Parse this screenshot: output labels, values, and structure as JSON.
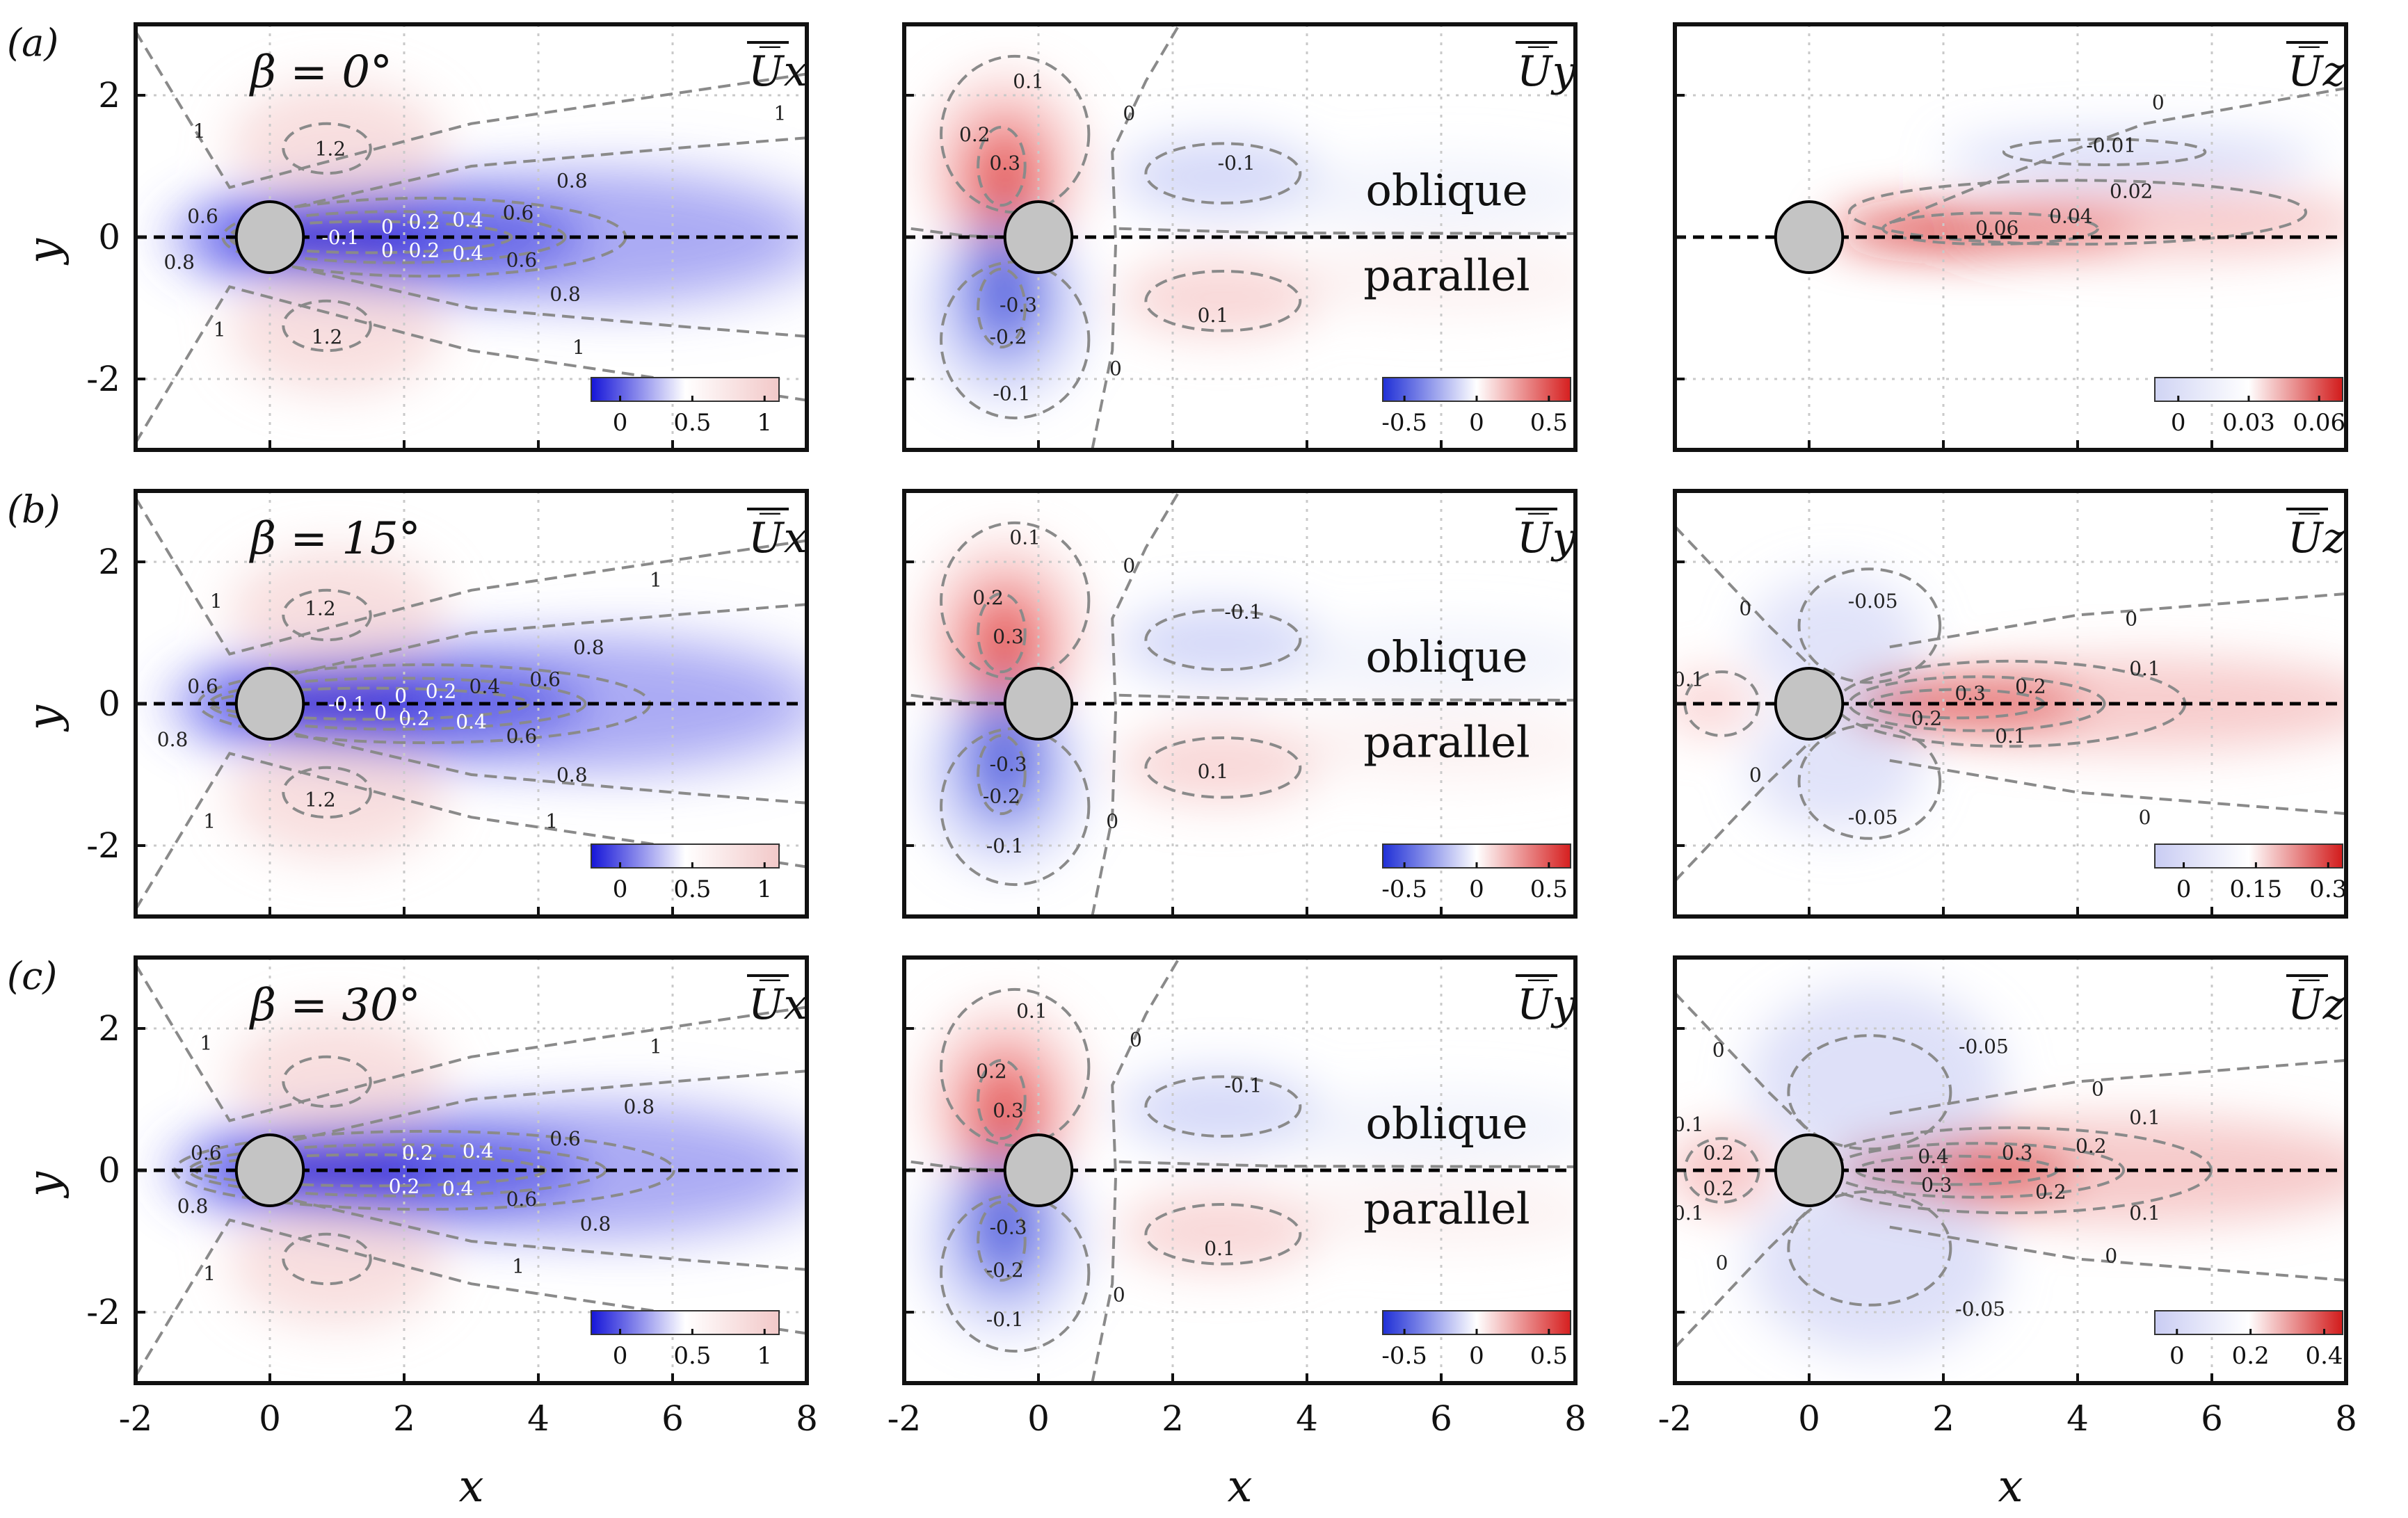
{
  "chart_data": {
    "type": "heatmap",
    "xlabel": "x",
    "ylabel": "y",
    "xlim": [
      -2,
      8
    ],
    "ylim": [
      -3,
      3
    ],
    "xticks": [
      "-2",
      "0",
      "2",
      "4",
      "6",
      "8"
    ],
    "yticks": [
      "2",
      "0",
      "-2"
    ],
    "region_labels": [
      "oblique",
      "parallel"
    ],
    "rows": [
      {
        "label": "(a)",
        "beta": "β = 0°",
        "panels": [
          {
            "field": "Ux",
            "title": "U̅x",
            "colorbar": {
              "min": -0.2,
              "max": 1.1,
              "ticks": [
                "0",
                "0.5",
                "1"
              ],
              "colors": [
                "#1515d8",
                "#ffffff",
                "#f2c8c8"
              ]
            },
            "contours": [
              {
                "v": "1",
                "x": 7.6,
                "y": 1.75
              },
              {
                "v": "1.2",
                "x": 0.9,
                "y": 1.25
              },
              {
                "v": "0.8",
                "x": 4.5,
                "y": 0.8
              },
              {
                "v": "0.6",
                "x": -1.0,
                "y": 0.3
              },
              {
                "v": "0.6",
                "x": 3.7,
                "y": 0.35
              },
              {
                "v": "0.4",
                "x": 2.95,
                "y": 0.25
              },
              {
                "v": "0.2",
                "x": 2.3,
                "y": 0.22
              },
              {
                "v": "0",
                "x": 1.75,
                "y": 0.15
              },
              {
                "v": "-0.1",
                "x": 1.05,
                "y": 0.0
              },
              {
                "v": "0",
                "x": 1.75,
                "y": -0.18
              },
              {
                "v": "0.2",
                "x": 2.3,
                "y": -0.18
              },
              {
                "v": "0.4",
                "x": 2.95,
                "y": -0.22
              },
              {
                "v": "0.6",
                "x": 3.75,
                "y": -0.32
              },
              {
                "v": "0.8",
                "x": -1.35,
                "y": -0.35
              },
              {
                "v": "0.8",
                "x": 4.4,
                "y": -0.8
              },
              {
                "v": "1.2",
                "x": 0.85,
                "y": -1.4
              },
              {
                "v": "1",
                "x": 4.6,
                "y": -1.55
              },
              {
                "v": "1",
                "x": -1.05,
                "y": 1.5
              },
              {
                "v": "1",
                "x": -0.75,
                "y": -1.3
              }
            ]
          },
          {
            "field": "Uy",
            "title": "U̅y",
            "colorbar": {
              "min": -0.65,
              "max": 0.65,
              "ticks": [
                "-0.5",
                "0",
                "0.5"
              ],
              "colors": [
                "#1f2fd6",
                "#ffffff",
                "#d61f1f"
              ]
            },
            "contours": [
              {
                "v": "0.1",
                "x": -0.15,
                "y": 2.2
              },
              {
                "v": "0",
                "x": 1.35,
                "y": 1.75
              },
              {
                "v": "0.2",
                "x": -0.95,
                "y": 1.45
              },
              {
                "v": "0.3",
                "x": -0.5,
                "y": 1.05
              },
              {
                "v": "-0.1",
                "x": 2.95,
                "y": 1.05
              },
              {
                "v": "-0.3",
                "x": -0.3,
                "y": -0.95
              },
              {
                "v": "-0.2",
                "x": -0.45,
                "y": -1.4
              },
              {
                "v": "0.1",
                "x": 2.6,
                "y": -1.1
              },
              {
                "v": "0",
                "x": 1.15,
                "y": -1.85
              },
              {
                "v": "-0.1",
                "x": -0.4,
                "y": -2.2
              }
            ]
          },
          {
            "field": "Uz",
            "title": "U̅z",
            "colorbar": {
              "min": -0.01,
              "max": 0.07,
              "ticks": [
                "0",
                "0.03",
                "0.06"
              ],
              "colors": [
                "#d0d4f4",
                "#ffffff",
                "#d21b1b"
              ]
            },
            "contours": [
              {
                "v": "0",
                "x": 5.2,
                "y": 1.9
              },
              {
                "v": "-0.01",
                "x": 4.5,
                "y": 1.3
              },
              {
                "v": "0.02",
                "x": 4.8,
                "y": 0.65
              },
              {
                "v": "0.04",
                "x": 3.9,
                "y": 0.3
              },
              {
                "v": "0.06",
                "x": 2.8,
                "y": 0.13
              }
            ]
          }
        ]
      },
      {
        "label": "(b)",
        "beta": "β = 15°",
        "panels": [
          {
            "field": "Ux",
            "title": "U̅x",
            "colorbar": {
              "min": -0.2,
              "max": 1.1,
              "ticks": [
                "0",
                "0.5",
                "1"
              ],
              "colors": [
                "#1515d8",
                "#ffffff",
                "#f2c8c8"
              ]
            },
            "contours": [
              {
                "v": "1",
                "x": 5.75,
                "y": 1.75
              },
              {
                "v": "1",
                "x": -0.8,
                "y": 1.45
              },
              {
                "v": "1.2",
                "x": 0.75,
                "y": 1.35
              },
              {
                "v": "0.8",
                "x": 4.75,
                "y": 0.8
              },
              {
                "v": "0.6",
                "x": -1.0,
                "y": 0.25
              },
              {
                "v": "0.6",
                "x": 4.1,
                "y": 0.35
              },
              {
                "v": "0.4",
                "x": 3.2,
                "y": 0.25
              },
              {
                "v": "0.2",
                "x": 2.55,
                "y": 0.18
              },
              {
                "v": "0",
                "x": 1.95,
                "y": 0.12
              },
              {
                "v": "-0.1",
                "x": 1.15,
                "y": 0.0
              },
              {
                "v": "0",
                "x": 1.65,
                "y": -0.12
              },
              {
                "v": "0.2",
                "x": 2.15,
                "y": -0.2
              },
              {
                "v": "0.4",
                "x": 3.0,
                "y": -0.25
              },
              {
                "v": "0.6",
                "x": 3.75,
                "y": -0.45
              },
              {
                "v": "0.8",
                "x": -1.45,
                "y": -0.5
              },
              {
                "v": "0.8",
                "x": 4.5,
                "y": -1.0
              },
              {
                "v": "1.2",
                "x": 0.75,
                "y": -1.35
              },
              {
                "v": "1",
                "x": -0.9,
                "y": -1.65
              },
              {
                "v": "1",
                "x": 4.2,
                "y": -1.65
              }
            ]
          },
          {
            "field": "Uy",
            "title": "U̅y",
            "colorbar": {
              "min": -0.65,
              "max": 0.65,
              "ticks": [
                "-0.5",
                "0",
                "0.5"
              ],
              "colors": [
                "#1f2fd6",
                "#ffffff",
                "#d61f1f"
              ]
            },
            "contours": [
              {
                "v": "0.1",
                "x": -0.2,
                "y": 2.35
              },
              {
                "v": "0",
                "x": 1.35,
                "y": 1.95
              },
              {
                "v": "0.2",
                "x": -0.75,
                "y": 1.5
              },
              {
                "v": "0.3",
                "x": -0.45,
                "y": 0.95
              },
              {
                "v": "-0.1",
                "x": 3.05,
                "y": 1.3
              },
              {
                "v": "-0.3",
                "x": -0.45,
                "y": -0.85
              },
              {
                "v": "-0.2",
                "x": -0.55,
                "y": -1.3
              },
              {
                "v": "0.1",
                "x": 2.6,
                "y": -0.95
              },
              {
                "v": "0",
                "x": 1.1,
                "y": -1.65
              },
              {
                "v": "-0.1",
                "x": -0.5,
                "y": -2.0
              }
            ]
          },
          {
            "field": "Uz",
            "title": "U̅z",
            "colorbar": {
              "min": -0.06,
              "max": 0.33,
              "ticks": [
                "0",
                "0.15",
                "0.3"
              ],
              "colors": [
                "#c9ccf3",
                "#ffffff",
                "#d21b1b"
              ]
            },
            "contours": [
              {
                "v": "0",
                "x": 4.8,
                "y": 1.2
              },
              {
                "v": "0",
                "x": -0.95,
                "y": 1.35
              },
              {
                "v": "-0.05",
                "x": 0.95,
                "y": 1.45
              },
              {
                "v": "0.1",
                "x": -1.8,
                "y": 0.35
              },
              {
                "v": "0.1",
                "x": 5.0,
                "y": 0.5
              },
              {
                "v": "0.2",
                "x": 3.3,
                "y": 0.25
              },
              {
                "v": "0.3",
                "x": 2.4,
                "y": 0.15
              },
              {
                "v": "0.2",
                "x": 1.75,
                "y": -0.2
              },
              {
                "v": "0.1",
                "x": 3.0,
                "y": -0.45
              },
              {
                "v": "0",
                "x": -0.8,
                "y": -1.0
              },
              {
                "v": "-0.05",
                "x": 0.95,
                "y": -1.6
              },
              {
                "v": "0",
                "x": 5.0,
                "y": -1.6
              }
            ]
          }
        ]
      },
      {
        "label": "(c)",
        "beta": "β = 30°",
        "panels": [
          {
            "field": "Ux",
            "title": "U̅x",
            "colorbar": {
              "min": -0.2,
              "max": 1.1,
              "ticks": [
                "0",
                "0.5",
                "1"
              ],
              "colors": [
                "#1515d8",
                "#ffffff",
                "#f2c8c8"
              ]
            },
            "contours": [
              {
                "v": "1",
                "x": -0.95,
                "y": 1.8
              },
              {
                "v": "1",
                "x": 5.75,
                "y": 1.75
              },
              {
                "v": "0.8",
                "x": 5.5,
                "y": 0.9
              },
              {
                "v": "0.6",
                "x": -0.95,
                "y": 0.25
              },
              {
                "v": "0.6",
                "x": 4.4,
                "y": 0.45
              },
              {
                "v": "0.4",
                "x": 3.1,
                "y": 0.28
              },
              {
                "v": "0.2",
                "x": 2.2,
                "y": 0.25
              },
              {
                "v": "0.2",
                "x": 2.0,
                "y": -0.22
              },
              {
                "v": "0.4",
                "x": 2.8,
                "y": -0.25
              },
              {
                "v": "0.6",
                "x": 3.75,
                "y": -0.4
              },
              {
                "v": "0.8",
                "x": -1.15,
                "y": -0.5
              },
              {
                "v": "0.8",
                "x": 4.85,
                "y": -0.75
              },
              {
                "v": "1",
                "x": -0.9,
                "y": -1.45
              },
              {
                "v": "1",
                "x": 3.7,
                "y": -1.35
              }
            ]
          },
          {
            "field": "Uy",
            "title": "U̅y",
            "colorbar": {
              "min": -0.65,
              "max": 0.65,
              "ticks": [
                "-0.5",
                "0",
                "0.5"
              ],
              "colors": [
                "#1f2fd6",
                "#ffffff",
                "#d61f1f"
              ]
            },
            "contours": [
              {
                "v": "0.1",
                "x": -0.1,
                "y": 2.25
              },
              {
                "v": "0",
                "x": 1.45,
                "y": 1.85
              },
              {
                "v": "0.2",
                "x": -0.7,
                "y": 1.4
              },
              {
                "v": "0.3",
                "x": -0.45,
                "y": 0.85
              },
              {
                "v": "-0.1",
                "x": 3.05,
                "y": 1.2
              },
              {
                "v": "-0.3",
                "x": -0.45,
                "y": -0.8
              },
              {
                "v": "-0.2",
                "x": -0.5,
                "y": -1.4
              },
              {
                "v": "0.1",
                "x": 2.7,
                "y": -1.1
              },
              {
                "v": "0",
                "x": 1.2,
                "y": -1.75
              },
              {
                "v": "-0.1",
                "x": -0.5,
                "y": -2.1
              }
            ]
          },
          {
            "field": "Uz",
            "title": "U̅z",
            "colorbar": {
              "min": -0.06,
              "max": 0.45,
              "ticks": [
                "0",
                "0.2",
                "0.4"
              ],
              "colors": [
                "#c9ccf3",
                "#ffffff",
                "#d21b1b"
              ]
            },
            "contours": [
              {
                "v": "0",
                "x": -1.35,
                "y": 1.7
              },
              {
                "v": "-0.05",
                "x": 2.6,
                "y": 1.75
              },
              {
                "v": "0",
                "x": 4.3,
                "y": 1.15
              },
              {
                "v": "0.1",
                "x": 5.0,
                "y": 0.75
              },
              {
                "v": "0.1",
                "x": -1.8,
                "y": 0.65
              },
              {
                "v": "0.2",
                "x": -1.35,
                "y": 0.25
              },
              {
                "v": "0.2",
                "x": -1.35,
                "y": -0.25
              },
              {
                "v": "0.2",
                "x": 4.2,
                "y": 0.35
              },
              {
                "v": "0.3",
                "x": 3.1,
                "y": 0.25
              },
              {
                "v": "0.4",
                "x": 1.85,
                "y": 0.2
              },
              {
                "v": "0.3",
                "x": 1.9,
                "y": -0.2
              },
              {
                "v": "0.2",
                "x": 3.6,
                "y": -0.3
              },
              {
                "v": "0.1",
                "x": 5.0,
                "y": -0.6
              },
              {
                "v": "0.1",
                "x": -1.8,
                "y": -0.6
              },
              {
                "v": "0",
                "x": 4.5,
                "y": -1.2
              },
              {
                "v": "0",
                "x": -1.3,
                "y": -1.3
              },
              {
                "v": "-0.05",
                "x": 2.55,
                "y": -1.95
              }
            ]
          }
        ]
      }
    ]
  }
}
